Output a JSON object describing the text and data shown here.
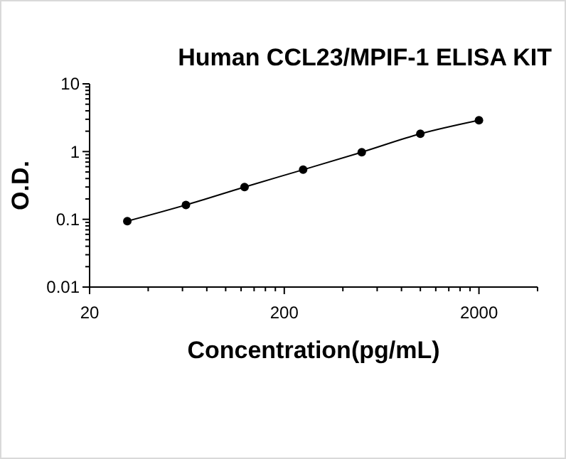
{
  "chart_data": {
    "type": "line",
    "title": "Human CCL23/MPIF-1 ELISA KIT",
    "xlabel": "Concentration(pg/mL)",
    "ylabel": "O.D.",
    "log": "xy",
    "grid": false,
    "marker": "circle",
    "line_style": "solid",
    "xlim": [
      20,
      4000
    ],
    "ylim": [
      0.01,
      10
    ],
    "xticks": [
      20,
      {
        "value": 40,
        "label": null
      },
      {
        "value": 60,
        "label": null
      },
      {
        "value": 80,
        "label": null
      },
      {
        "value": 100,
        "label": null
      },
      {
        "value": 120,
        "label": null
      },
      {
        "value": 140,
        "label": null
      },
      {
        "value": 160,
        "label": null
      },
      {
        "value": 180,
        "label": null
      },
      200,
      {
        "value": 400,
        "label": null
      },
      {
        "value": 600,
        "label": null
      },
      {
        "value": 800,
        "label": null
      },
      {
        "value": 1000,
        "label": null
      },
      {
        "value": 1200,
        "label": null
      },
      {
        "value": 1400,
        "label": null
      },
      {
        "value": 1600,
        "label": null
      },
      {
        "value": 1800,
        "label": null
      },
      2000,
      {
        "value": 4000,
        "label": null
      }
    ],
    "yticks": [
      0.01,
      {
        "value": 0.02,
        "label": null
      },
      {
        "value": 0.03,
        "label": null
      },
      {
        "value": 0.04,
        "label": null
      },
      {
        "value": 0.05,
        "label": null
      },
      {
        "value": 0.06,
        "label": null
      },
      {
        "value": 0.07,
        "label": null
      },
      {
        "value": 0.08,
        "label": null
      },
      {
        "value": 0.09,
        "label": null
      },
      0.1,
      {
        "value": 0.2,
        "label": null
      },
      {
        "value": 0.3,
        "label": null
      },
      {
        "value": 0.4,
        "label": null
      },
      {
        "value": 0.5,
        "label": null
      },
      {
        "value": 0.6,
        "label": null
      },
      {
        "value": 0.7,
        "label": null
      },
      {
        "value": 0.8,
        "label": null
      },
      {
        "value": 0.9,
        "label": null
      },
      1,
      {
        "value": 2,
        "label": null
      },
      {
        "value": 3,
        "label": null
      },
      {
        "value": 4,
        "label": null
      },
      {
        "value": 5,
        "label": null
      },
      {
        "value": 6,
        "label": null
      },
      {
        "value": 7,
        "label": null
      },
      {
        "value": 8,
        "label": null
      },
      {
        "value": 9,
        "label": null
      },
      10
    ],
    "x": [
      31.25,
      62.5,
      125,
      250,
      500,
      1000,
      2000
    ],
    "series": [
      {
        "color": "#000000",
        "values": [
          0.094,
          0.163,
          0.3,
          0.54,
          0.98,
          1.83,
          2.9
        ]
      }
    ]
  }
}
